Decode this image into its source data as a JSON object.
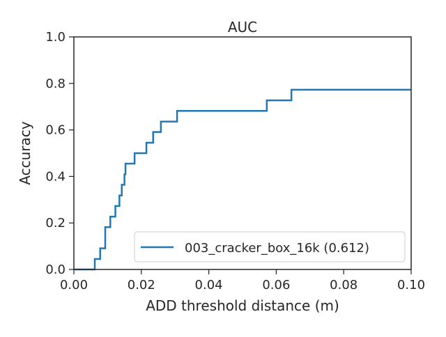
{
  "chart_data": {
    "type": "line",
    "title": "AUC",
    "xlabel": "ADD threshold distance (m)",
    "ylabel": "Accuracy",
    "xlim": [
      0.0,
      0.1
    ],
    "ylim": [
      0.0,
      1.0
    ],
    "x_ticks": [
      "0.00",
      "0.02",
      "0.04",
      "0.06",
      "0.08",
      "0.10"
    ],
    "y_ticks": [
      "0.0",
      "0.2",
      "0.4",
      "0.6",
      "0.8",
      "1.0"
    ],
    "grid": false,
    "legend_position": "bottom-right",
    "series": [
      {
        "name": "003_cracker_box_16k (0.612)",
        "color": "#1f77b4",
        "step": true,
        "points": [
          [
            0.0,
            0.0
          ],
          [
            0.0062,
            0.045
          ],
          [
            0.0078,
            0.091
          ],
          [
            0.0093,
            0.182
          ],
          [
            0.0108,
            0.227
          ],
          [
            0.0123,
            0.273
          ],
          [
            0.0135,
            0.318
          ],
          [
            0.0142,
            0.364
          ],
          [
            0.015,
            0.409
          ],
          [
            0.0153,
            0.455
          ],
          [
            0.018,
            0.5
          ],
          [
            0.0215,
            0.545
          ],
          [
            0.0235,
            0.591
          ],
          [
            0.0258,
            0.636
          ],
          [
            0.0306,
            0.682
          ],
          [
            0.0572,
            0.727
          ],
          [
            0.0645,
            0.773
          ],
          [
            0.1,
            0.773
          ]
        ]
      }
    ]
  }
}
